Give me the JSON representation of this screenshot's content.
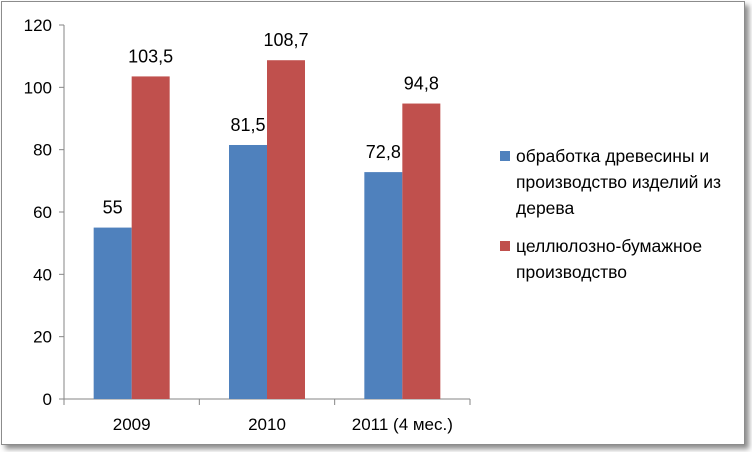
{
  "chart_data": {
    "type": "bar",
    "categories": [
      "2009",
      "2010",
      "2011 (4 мес.)"
    ],
    "series": [
      {
        "name": "обработка древесины и производство изделий из дерева",
        "values": [
          55,
          81.5,
          72.8
        ],
        "labels": [
          "55",
          "81,5",
          "72,8"
        ],
        "color": "#4f81bd"
      },
      {
        "name": "целлюлозно-бумажное производство",
        "values": [
          103.5,
          108.7,
          94.8
        ],
        "labels": [
          "103,5",
          "108,7",
          "94,8"
        ],
        "color": "#c0504d"
      }
    ],
    "ylim": [
      0,
      120
    ],
    "yticks": [
      "0",
      "20",
      "40",
      "60",
      "80",
      "100",
      "120"
    ],
    "grid": false,
    "legend_position": "right"
  }
}
